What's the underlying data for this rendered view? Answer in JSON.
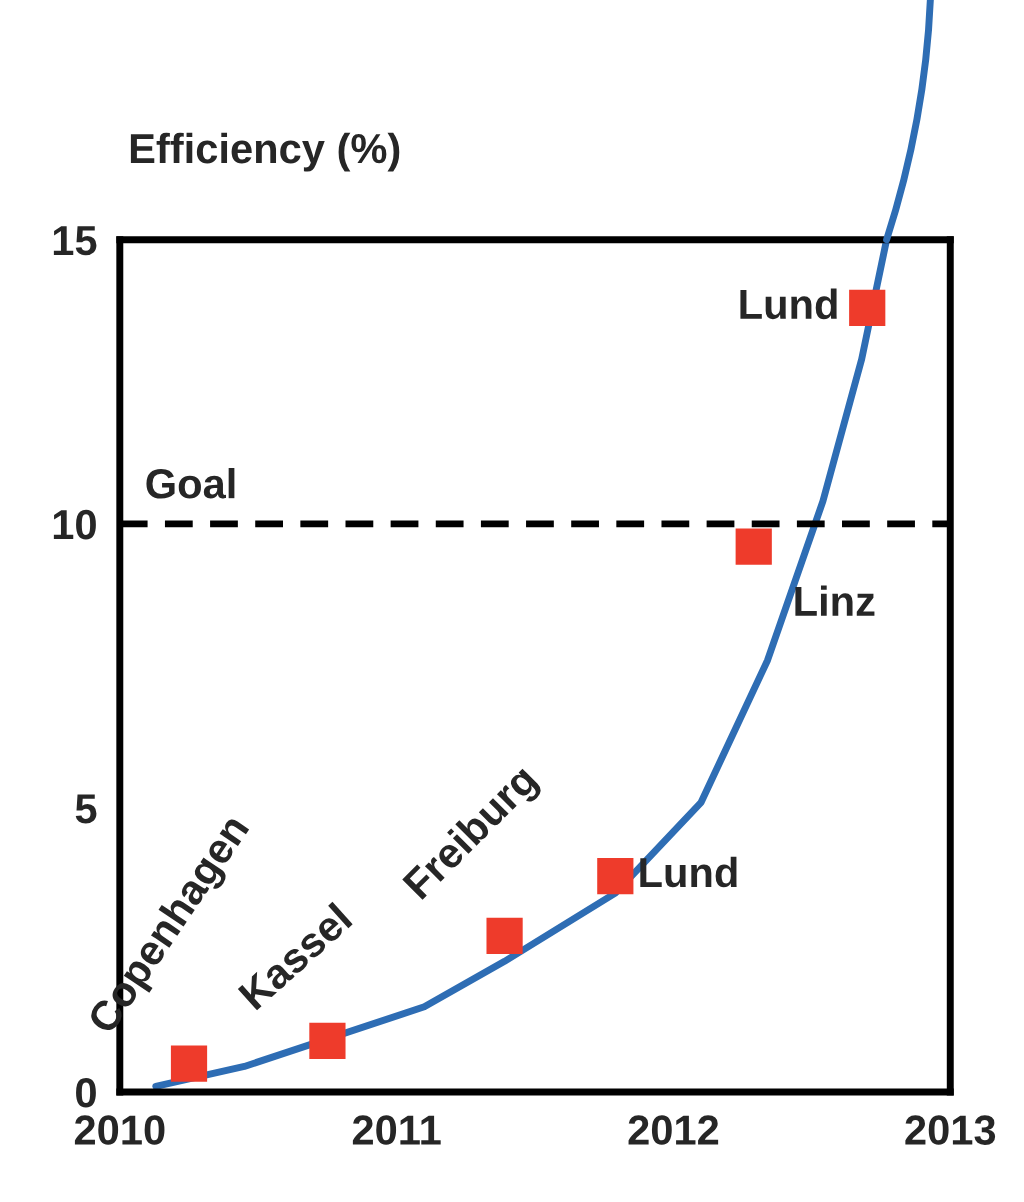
{
  "chart_data": {
    "type": "line",
    "ylabel": "Efficiency (%)",
    "xlim": [
      2010,
      2013
    ],
    "xticks": [
      2010,
      2011,
      2012,
      2013
    ],
    "ylim": [
      0,
      15
    ],
    "yticks": [
      0,
      5,
      10,
      15
    ],
    "grid": false,
    "legend": false,
    "series": [
      {
        "color": "#2e6db4",
        "x": [
          2010.13,
          2010.45,
          2011.1,
          2011.39,
          2011.79,
          2012.1,
          2012.34,
          2012.54,
          2012.68,
          2012.77
        ],
        "values": [
          0.1,
          0.45,
          1.5,
          2.3,
          3.5,
          5.1,
          7.6,
          10.4,
          12.9,
          15
        ]
      },
      {
        "type": "scatter",
        "marker": "square",
        "color": "#ee3b2b",
        "x": [
          2010.25,
          2010.75,
          2011.39,
          2011.79,
          2012.29,
          2012.7
        ],
        "values": [
          0.5,
          0.9,
          2.75,
          3.8,
          9.6,
          13.8
        ]
      }
    ],
    "ref_lines": [
      {
        "axis": "y",
        "value": 10,
        "label": "Goal",
        "color": "#000000",
        "line_style": "dashed"
      }
    ],
    "annotations": [
      {
        "text": "Copenhagen",
        "x": 2010.25,
        "y": 0.5
      },
      {
        "text": "Kassel",
        "x": 2010.75,
        "y": 0.9
      },
      {
        "text": "Freiburg",
        "x": 2011.39,
        "y": 2.75
      },
      {
        "text": "Lund",
        "x": 2011.79,
        "y": 3.8
      },
      {
        "text": "Linz",
        "x": 2012.29,
        "y": 9.6
      },
      {
        "text": "Lund",
        "x": 2012.7,
        "y": 13.8
      }
    ]
  }
}
